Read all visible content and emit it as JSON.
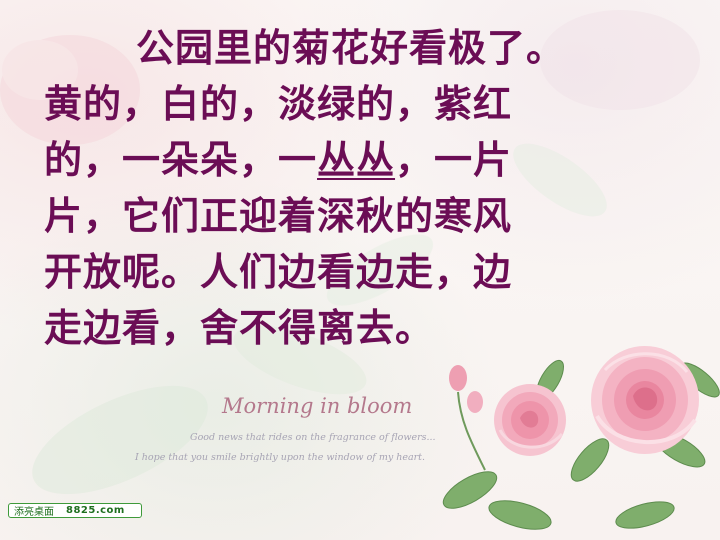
{
  "poem": {
    "lines": [
      "公园里的菊花好看极了。",
      "黄的，白的，淡绿的，紫红",
      "的，一朵朵，一",
      "，一片",
      "片，它们正迎着深秋的寒风",
      "开放呢。人们边看边走，边",
      "走边看，舍不得离去。"
    ],
    "underlined": "丛丛",
    "color": "#6b0d55"
  },
  "motto": {
    "title": "Morning in bloom",
    "line1": "Good news that rides on the fragrance of flowers...",
    "line2": "I hope that you smile brightly upon the window of my heart."
  },
  "watermark": {
    "site_name": "添亮桌面",
    "url": "8825.com",
    "border_color": "#3e9a3a"
  },
  "decoration": {
    "main_flower": "pink-rose-bouquet-illustration",
    "background_flower": "faded-pink-flower-pattern"
  }
}
